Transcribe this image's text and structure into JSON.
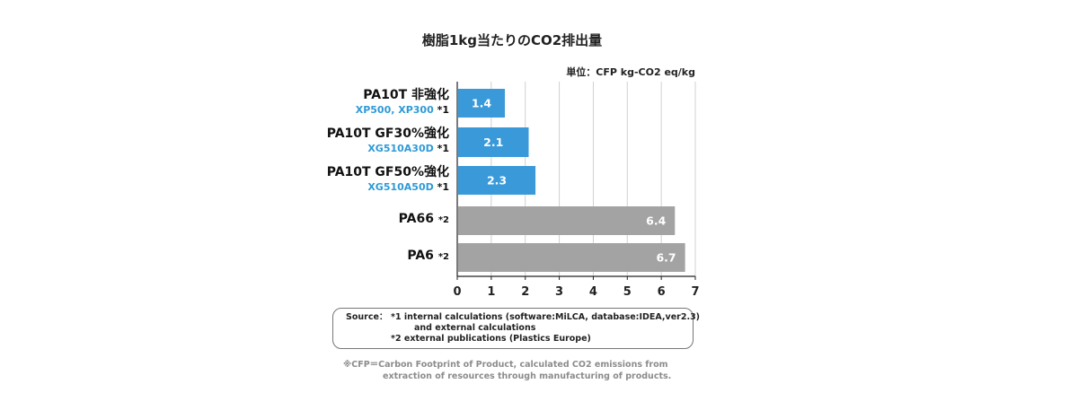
{
  "chart_data": {
    "type": "bar",
    "orientation": "horizontal",
    "title": "樹脂1kg当たりのCO2排出量",
    "unit_label": "単位：CFP kg-CO2 eq/kg",
    "categories": [
      {
        "name": "PA10T 非強化",
        "grade": "XP500, XP300",
        "note": "*1",
        "value": 1.4,
        "value_label": "1.4",
        "color": "#3a9ad9"
      },
      {
        "name": "PA10T GF30%強化",
        "grade": "XG510A30D",
        "note": "*1",
        "value": 2.1,
        "value_label": "2.1",
        "color": "#3a9ad9"
      },
      {
        "name": "PA10T GF50%強化",
        "grade": "XG510A50D",
        "note": "*1",
        "value": 2.3,
        "value_label": "2.3",
        "color": "#3a9ad9"
      },
      {
        "name": "PA66",
        "grade": "",
        "note": "*2",
        "value": 6.4,
        "value_label": "6.4",
        "color": "#a3a3a3"
      },
      {
        "name": "PA6",
        "grade": "",
        "note": "*2",
        "value": 6.7,
        "value_label": "6.7",
        "color": "#a3a3a3"
      }
    ],
    "xlim": [
      0,
      7
    ],
    "xticks": [
      "0",
      "1",
      "2",
      "3",
      "4",
      "5",
      "6",
      "7"
    ],
    "grid": true,
    "grid_color": "#d0d0d0"
  },
  "source": {
    "key": "Source：",
    "line1": "*1 internal calculations (software:MiLCA, database:IDEA,ver2.3)",
    "line2": "and external calculations",
    "line3": "*2 external publications (Plastics Europe)"
  },
  "footnote": {
    "line1": "※CFP＝Carbon Footprint of Product, calculated CO2 emissions from",
    "line2": "extraction of resources through manufacturing of products."
  }
}
